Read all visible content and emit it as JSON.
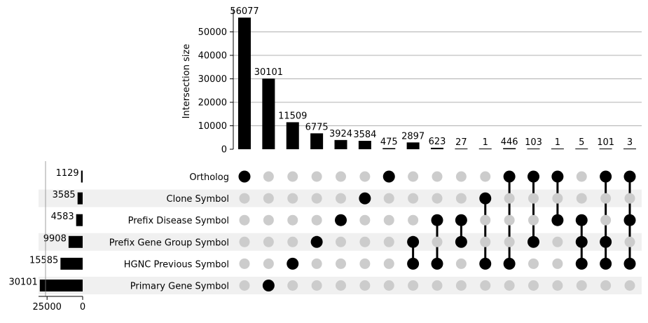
{
  "chart_data": {
    "type": "bar",
    "subtype": "upset",
    "ylabel": "Intersection size",
    "ylim": [
      0,
      60000
    ],
    "y_ticks": [
      0,
      10000,
      20000,
      30000,
      40000,
      50000
    ],
    "y_tick_labels": [
      "0",
      "10000",
      "20000",
      "30000",
      "40000",
      "50000"
    ],
    "grid": true,
    "sets": [
      "Ortholog",
      "Clone Symbol",
      "Prefix Disease Symbol",
      "Prefix Gene Group Symbol",
      "HGNC Previous Symbol",
      "Primary Gene Symbol"
    ],
    "set_sizes": [
      1129,
      3585,
      4583,
      9908,
      15585,
      30101
    ],
    "set_size_labels": [
      "1129",
      "3585",
      "4583",
      "9908",
      "15585",
      "30101"
    ],
    "set_size_axis_ticks": [
      25000,
      0
    ],
    "set_size_axis_tick_labels": [
      "25000",
      "0"
    ],
    "intersections": [
      {
        "members": [
          "Ortholog"
        ],
        "size": 56077,
        "label": "56077"
      },
      {
        "members": [
          "Primary Gene Symbol"
        ],
        "size": 30101,
        "label": "30101"
      },
      {
        "members": [
          "HGNC Previous Symbol"
        ],
        "size": 11509,
        "label": "11509"
      },
      {
        "members": [
          "Prefix Gene Group Symbol"
        ],
        "size": 6775,
        "label": "6775"
      },
      {
        "members": [
          "Prefix Disease Symbol"
        ],
        "size": 3924,
        "label": "3924"
      },
      {
        "members": [
          "Clone Symbol"
        ],
        "size": 3584,
        "label": "3584"
      },
      {
        "members": [
          "Ortholog"
        ],
        "size": 475,
        "label": "475"
      },
      {
        "members": [
          "Prefix Gene Group Symbol",
          "HGNC Previous Symbol"
        ],
        "size": 2897,
        "label": "2897"
      },
      {
        "members": [
          "Prefix Disease Symbol",
          "HGNC Previous Symbol"
        ],
        "size": 623,
        "label": "623"
      },
      {
        "members": [
          "Prefix Disease Symbol",
          "Prefix Gene Group Symbol"
        ],
        "size": 27,
        "label": "27"
      },
      {
        "members": [
          "Clone Symbol",
          "HGNC Previous Symbol"
        ],
        "size": 1,
        "label": "1"
      },
      {
        "members": [
          "Ortholog",
          "HGNC Previous Symbol"
        ],
        "size": 446,
        "label": "446"
      },
      {
        "members": [
          "Ortholog",
          "Prefix Gene Group Symbol"
        ],
        "size": 103,
        "label": "103"
      },
      {
        "members": [
          "Ortholog",
          "Prefix Disease Symbol"
        ],
        "size": 1,
        "label": "1"
      },
      {
        "members": [
          "Prefix Disease Symbol",
          "Prefix Gene Group Symbol",
          "HGNC Previous Symbol"
        ],
        "size": 5,
        "label": "5"
      },
      {
        "members": [
          "Ortholog",
          "Prefix Gene Group Symbol",
          "HGNC Previous Symbol"
        ],
        "size": 101,
        "label": "101"
      },
      {
        "members": [
          "Ortholog",
          "Prefix Disease Symbol",
          "HGNC Previous Symbol"
        ],
        "size": 3,
        "label": "3"
      }
    ],
    "colors": {
      "bar": "#000000",
      "dot_active": "#000000",
      "dot_inactive": "#cccccc",
      "stripe": "#f0f0f0",
      "grid": "#b0b0b0"
    }
  }
}
